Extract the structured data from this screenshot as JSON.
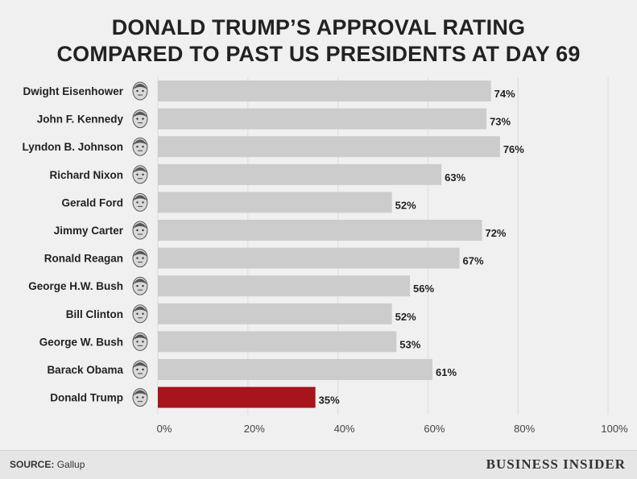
{
  "header": {
    "title_line1": "DONALD TRUMP’S APPROVAL RATING",
    "title_line2": "COMPARED TO PAST US PRESIDENTS AT DAY 69"
  },
  "footer": {
    "source_label": "SOURCE:",
    "source_value": "Gallup",
    "brand": "BUSINESS INSIDER"
  },
  "colors": {
    "bar": "#cccccc",
    "highlight": "#a8141c",
    "text": "#222222",
    "grid": "#dddddd"
  },
  "chart_data": {
    "type": "bar",
    "orientation": "horizontal",
    "title": "DONALD TRUMP’S APPROVAL RATING COMPARED TO PAST US PRESIDENTS AT DAY 69",
    "categories": [
      "Dwight Eisenhower",
      "John F. Kennedy",
      "Lyndon B. Johnson",
      "Richard Nixon",
      "Gerald Ford",
      "Jimmy Carter",
      "Ronald Reagan",
      "George H.W. Bush",
      "Bill Clinton",
      "George W. Bush",
      "Barack Obama",
      "Donald Trump"
    ],
    "values": [
      74,
      73,
      76,
      63,
      52,
      72,
      67,
      56,
      52,
      53,
      61,
      35
    ],
    "value_labels": [
      "74%",
      "73%",
      "76%",
      "63%",
      "52%",
      "72%",
      "67%",
      "56%",
      "52%",
      "53%",
      "61%",
      "35%"
    ],
    "highlight_category": "Donald Trump",
    "xlim": [
      0,
      100
    ],
    "x_ticks": [
      0,
      20,
      40,
      60,
      80,
      100
    ],
    "x_tick_labels": [
      "0%",
      "20%",
      "40%",
      "60%",
      "80%",
      "100%"
    ],
    "grid": true,
    "legend": "none"
  }
}
